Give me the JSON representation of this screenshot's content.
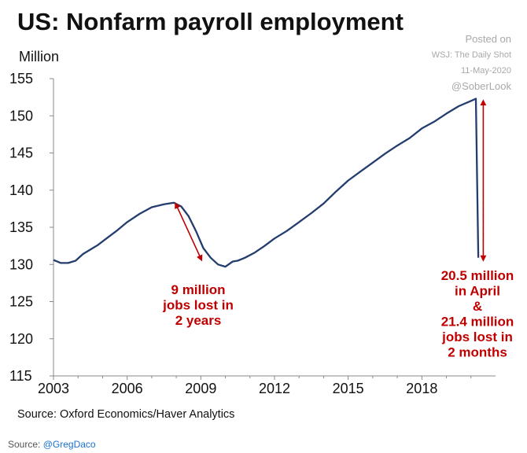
{
  "header": {
    "title": "US: Nonfarm payroll employment",
    "posted": [
      "Posted on",
      "WSJ: The Daily Shot",
      "11-May-2020",
      "@SoberLook"
    ]
  },
  "source_line": "Source: Oxford Economics/Haver Analytics",
  "credit": {
    "prefix": "Source: ",
    "handle": "@GregDaco"
  },
  "chart_data": {
    "type": "line",
    "title": "US: Nonfarm payroll employment",
    "ylabel": "Million",
    "xlabel": "",
    "xlim": [
      2003,
      2021
    ],
    "ylim": [
      115,
      155
    ],
    "xticks": [
      "2003",
      "2006",
      "2009",
      "2012",
      "2015",
      "2018"
    ],
    "yticks": [
      "155",
      "150",
      "145",
      "140",
      "135",
      "130",
      "125",
      "120",
      "115"
    ],
    "color": "#233d6e",
    "grid": false,
    "series": [
      {
        "x": [
          2003.0,
          2003.3,
          2003.6,
          2003.9,
          2004.2,
          2004.5,
          2004.8,
          2005.2,
          2005.6,
          2006.0,
          2006.5,
          2007.0,
          2007.5,
          2007.9,
          2008.2,
          2008.5,
          2008.8,
          2009.1,
          2009.4,
          2009.7,
          2010.0,
          2010.3,
          2010.5,
          2010.8,
          2011.2,
          2011.6,
          2012.0,
          2012.5,
          2013.0,
          2013.5,
          2014.0,
          2014.5,
          2015.0,
          2015.5,
          2016.0,
          2016.5,
          2017.0,
          2017.5,
          2018.0,
          2018.5,
          2019.0,
          2019.5,
          2020.0,
          2020.2,
          2020.3
        ],
        "y": [
          130.6,
          130.2,
          130.2,
          130.5,
          131.4,
          132.0,
          132.6,
          133.6,
          134.6,
          135.7,
          136.8,
          137.7,
          138.1,
          138.3,
          137.8,
          136.5,
          134.5,
          132.2,
          130.9,
          130.0,
          129.7,
          130.4,
          130.5,
          130.9,
          131.6,
          132.5,
          133.5,
          134.5,
          135.7,
          136.9,
          138.2,
          139.8,
          141.3,
          142.5,
          143.7,
          144.9,
          146.0,
          147.0,
          148.3,
          149.2,
          150.3,
          151.3,
          152.0,
          152.3,
          130.9
        ]
      }
    ],
    "annotations": [
      {
        "lines": [
          "9 million",
          "jobs lost in",
          "2 years"
        ],
        "arrow": [
          [
            2008.0,
            138.0
          ],
          [
            2009.0,
            130.8
          ]
        ]
      },
      {
        "lines": [
          "20.5 million",
          "in April",
          "&",
          "21.4 million",
          "jobs lost in",
          "2 months"
        ],
        "arrow": [
          [
            2020.5,
            151.8
          ],
          [
            2020.5,
            130.8
          ]
        ]
      }
    ]
  }
}
